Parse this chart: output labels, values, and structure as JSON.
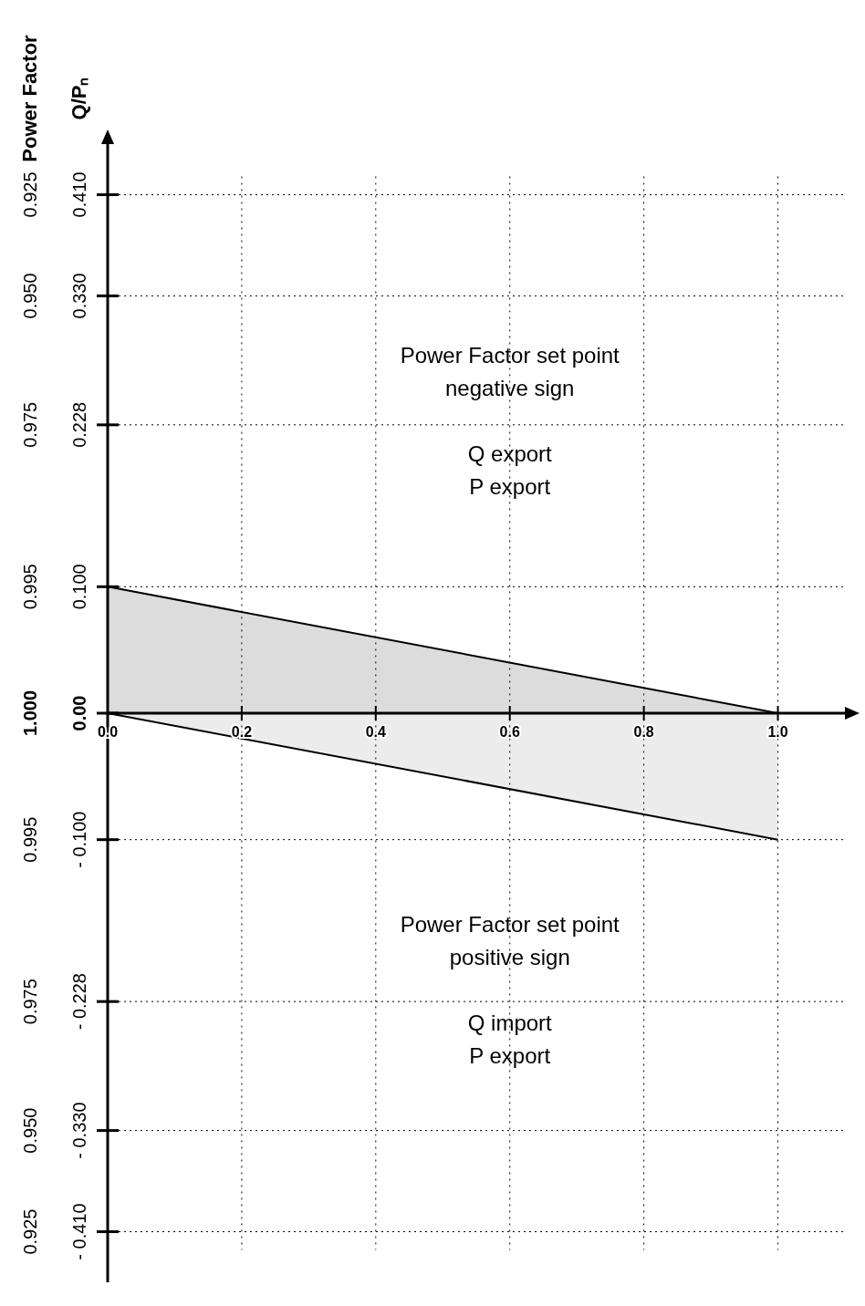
{
  "chart_data": {
    "type": "area",
    "ylabel": "Q/Pₙ",
    "y2label": "Power Factor",
    "x": [
      0,
      1
    ],
    "series": [
      {
        "color": "#dcdcdc",
        "values": [
          0.1,
          0
        ]
      },
      {
        "color": "#ececec",
        "values": [
          0,
          -0.1
        ]
      }
    ],
    "xlim": [
      0,
      1.1
    ],
    "xticks": [
      {
        "value": 0,
        "label": "0.0"
      },
      {
        "value": 0.2,
        "label": "0.2"
      },
      {
        "value": 0.4,
        "label": "0.4"
      },
      {
        "value": 0.6,
        "label": "0.6"
      },
      {
        "value": 0.8,
        "label": "0.8"
      },
      {
        "value": 1,
        "label": "1.0"
      }
    ],
    "ylim": [
      -0.45,
      0.45
    ],
    "yticks": [
      {
        "value": 0.41,
        "label": "0.410"
      },
      {
        "value": 0.33,
        "label": "0.330"
      },
      0.228,
      {
        "value": 0.1,
        "label": "0.100"
      },
      {
        "value": 0,
        "label": "0.00"
      },
      {
        "value": -0.1,
        "label": "- 0.100"
      },
      {
        "value": -0.228,
        "label": "- 0.228"
      },
      {
        "value": -0.33,
        "label": "- 0.330"
      },
      {
        "value": -0.41,
        "label": "- 0.410"
      }
    ],
    "grid": true,
    "line_style": "solid",
    "annotations": [
      "Power Factor set point\nnegative sign\n\nQ export\nP export",
      "Power Factor set point\npositive sign\n\nQ import\nP export",
      "0.925",
      "0.950",
      "0.975",
      "0.995",
      "1.000",
      "0.995",
      "0.975",
      "0.950",
      "0.925"
    ]
  }
}
